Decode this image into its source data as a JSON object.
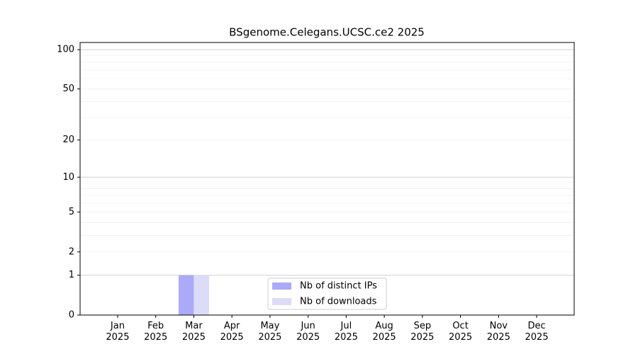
{
  "chart_data": {
    "type": "bar",
    "title": "BSgenome.Celegans.UCSC.ce2 2025",
    "categories": [
      "Jan\n2025",
      "Feb\n2025",
      "Mar\n2025",
      "Apr\n2025",
      "May\n2025",
      "Jun\n2025",
      "Jul\n2025",
      "Aug\n2025",
      "Sep\n2025",
      "Oct\n2025",
      "Nov\n2025",
      "Dec\n2025"
    ],
    "series": [
      {
        "name": "Nb of distinct IPs",
        "color": "#aaaaf8",
        "values": [
          0,
          0,
          1,
          0,
          0,
          0,
          0,
          0,
          0,
          0,
          0,
          0
        ]
      },
      {
        "name": "Nb of downloads",
        "color": "#dcdcf8",
        "values": [
          0,
          0,
          1,
          0,
          0,
          0,
          0,
          0,
          0,
          0,
          0,
          0
        ]
      }
    ],
    "yscale": "log1p",
    "ylim": [
      0,
      113.5
    ],
    "yticks": [
      0,
      1,
      2,
      5,
      10,
      20,
      50,
      100
    ],
    "major_grid": [
      1,
      10,
      100
    ],
    "minor_grid": [
      2,
      3,
      4,
      5,
      6,
      7,
      8,
      9,
      20,
      30,
      40,
      50,
      60,
      70,
      80,
      90
    ],
    "legend": "lower center"
  }
}
